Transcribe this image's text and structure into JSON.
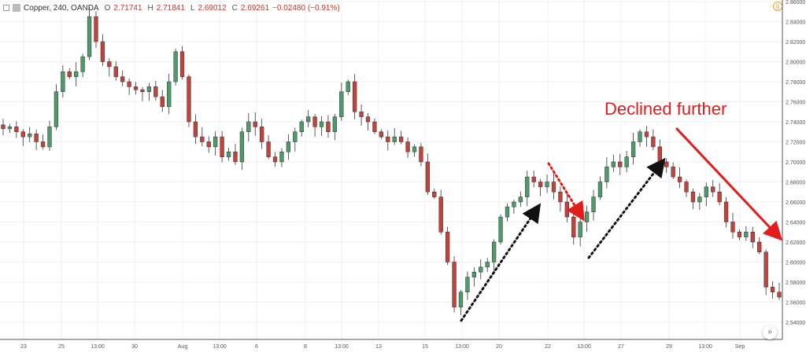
{
  "header": {
    "symbol": "Copper, 240, OANDA",
    "o_label": "O",
    "o_value": "2.71741",
    "h_label": "H",
    "h_value": "2.71841",
    "l_label": "L",
    "l_value": "2.69012",
    "c_label": "C",
    "c_value": "2.69261",
    "change": "−0.02480 (−0.91%)"
  },
  "icons": {
    "collapse": "collapse-icon",
    "settings": "settings-icon",
    "scroll": "scroll-to-latest-icon"
  },
  "scroll_button": "»",
  "settings_glyph": "§",
  "colors": {
    "up": "#4e9a6a",
    "down": "#c0433c",
    "annotation": "#e21b1b",
    "arrow_dark": "#111111"
  },
  "chart_data": {
    "type": "candlestick",
    "title": "Copper, 240, OANDA",
    "y_range": [
      2.53,
      2.86
    ],
    "y_ticks": [
      "2.54000",
      "2.56000",
      "2.58000",
      "2.60000",
      "2.62000",
      "2.64000",
      "2.66000",
      "2.68000",
      "2.70000",
      "2.72000",
      "2.74000",
      "2.76000",
      "2.78000",
      "2.80000",
      "2.82000",
      "2.84000",
      "2.86000"
    ],
    "x_ticks": [
      "23",
      "25",
      "13:00",
      "30",
      "Aug",
      "13:00",
      "6",
      "8",
      "13:00",
      "13",
      "15",
      "13:00",
      "20",
      "22",
      "13:00",
      "27",
      "29",
      "13:00",
      "Sep"
    ],
    "ohlc_close_path": [
      2.733,
      2.735,
      2.73,
      2.725,
      2.728,
      2.72,
      2.715,
      2.735,
      2.77,
      2.79,
      2.785,
      2.79,
      2.805,
      2.845,
      2.82,
      2.8,
      2.795,
      2.785,
      2.78,
      2.775,
      2.772,
      2.77,
      2.775,
      2.765,
      2.755,
      2.78,
      2.81,
      2.785,
      2.74,
      2.725,
      2.72,
      2.715,
      2.725,
      2.705,
      2.71,
      2.7,
      2.73,
      2.74,
      2.735,
      2.72,
      2.705,
      2.7,
      2.71,
      2.72,
      2.73,
      2.74,
      2.745,
      2.735,
      2.74,
      2.73,
      2.745,
      2.77,
      2.78,
      2.75,
      2.745,
      2.74,
      2.73,
      2.725,
      2.72,
      2.725,
      2.72,
      2.71,
      2.715,
      2.7,
      2.67,
      2.665,
      2.63,
      2.6,
      2.555,
      2.57,
      2.585,
      2.59,
      2.595,
      2.6,
      2.62,
      2.645,
      2.655,
      2.66,
      2.665,
      2.685,
      2.68,
      2.675,
      2.68,
      2.67,
      2.66,
      2.645,
      2.625,
      2.64,
      2.65,
      2.665,
      2.68,
      2.695,
      2.7,
      2.695,
      2.705,
      2.72,
      2.73,
      2.725,
      2.715,
      2.7,
      2.695,
      2.685,
      2.68,
      2.67,
      2.66,
      2.665,
      2.675,
      2.67,
      2.66,
      2.64,
      2.63,
      2.625,
      2.63,
      2.62,
      2.61,
      2.575,
      2.57,
      2.565
    ],
    "annotations": [
      {
        "text": "Declined further"
      }
    ],
    "grid": true
  }
}
